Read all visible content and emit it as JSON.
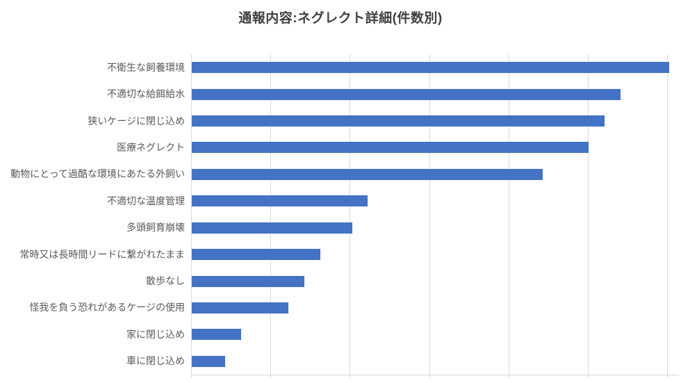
{
  "chart_data": {
    "type": "bar",
    "orientation": "horizontal",
    "title": "通報内容:ネグレクト詳細(件数別)",
    "categories": [
      "不衛生な飼養環境",
      "不適切な給餌給水",
      "狭いケージに閉じ込め",
      "医療ネグレクト",
      "動物にとって過酷な環境にあたる外飼い",
      "不適切な温度管理",
      "多頭飼育崩壊",
      "常時又は長時間リードに繋がれたまま",
      "散歩なし",
      "怪我を負う恐れがあるケージの使用",
      "家に閉じ込め",
      "車に閉じ込め"
    ],
    "values": [
      301,
      270,
      260,
      250,
      221,
      111,
      101,
      81,
      71,
      61,
      31,
      21
    ],
    "values_estimated_from_gridlines": true,
    "xlim": [
      0,
      300
    ],
    "gridline_step": 50,
    "x_tick_labels_visible": false,
    "legend": "none",
    "grid": "vertical",
    "colors": {
      "bar": "#4472C4",
      "gridline": "#D9D9D9",
      "axis_line": "#D6D6D6",
      "category_label": "#595959",
      "title": "#3F3F3F"
    }
  }
}
